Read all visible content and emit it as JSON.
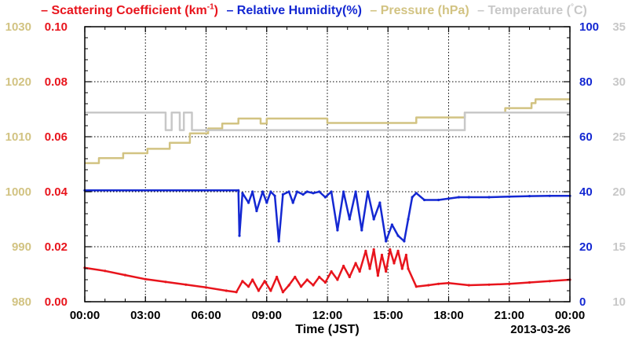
{
  "chart_data": {
    "type": "line",
    "legend": [
      {
        "name": "Scattering Coefficient (km",
        "sup": "-1",
        "tail": ")",
        "color": "#e8141c"
      },
      {
        "name": "Relative Humidity(%)",
        "color": "#1428d2"
      },
      {
        "name": "Pressure (hPa)",
        "color": "#d2c382"
      },
      {
        "name": "Temperature (",
        "sup": "°",
        "tail": "C)",
        "color": "#c8c8c8"
      }
    ],
    "xlabel": "Time (JST)",
    "date_label": "2013-03-26",
    "x_range": [
      0,
      24
    ],
    "x_ticks": [
      "00:00",
      "03:00",
      "06:00",
      "09:00",
      "12:00",
      "15:00",
      "18:00",
      "21:00",
      "00:00"
    ],
    "grid": true,
    "axes": {
      "pressure": {
        "ticks": [
          "980",
          "990",
          "1000",
          "1010",
          "1020",
          "1030"
        ],
        "range": [
          980,
          1030
        ],
        "color": "#d2c382"
      },
      "scattering": {
        "ticks": [
          "0.00",
          "0.02",
          "0.04",
          "0.06",
          "0.08",
          "0.10"
        ],
        "range": [
          0,
          0.1
        ],
        "color": "#e8141c"
      },
      "humidity": {
        "ticks": [
          "0",
          "20",
          "40",
          "60",
          "80",
          "100"
        ],
        "range": [
          0,
          100
        ],
        "color": "#1428d2"
      },
      "temperature": {
        "ticks": [
          "10",
          "15",
          "20",
          "25",
          "30",
          "35"
        ],
        "range": [
          10,
          35
        ],
        "color": "#c8c8c8"
      }
    },
    "series": [
      {
        "name": "Pressure (hPa)",
        "axis": "pressure",
        "color": "#d2c382",
        "x": [
          0,
          0.7,
          0.7,
          1.9,
          1.9,
          3.1,
          3.1,
          4.2,
          4.2,
          5.2,
          5.2,
          6.1,
          6.1,
          6.8,
          6.8,
          7.6,
          7.6,
          8.7,
          8.7,
          9.0,
          9.0,
          9.2,
          9.2,
          9.8,
          9.8,
          12.0,
          12.0,
          12.3,
          12.3,
          16.4,
          16.4,
          18.8,
          18.8,
          20.8,
          20.8,
          22.1,
          22.1,
          22.3,
          22.3,
          24
        ],
        "y": [
          1005.2,
          1005.2,
          1006.1,
          1006.1,
          1007.0,
          1007.0,
          1007.8,
          1007.8,
          1008.9,
          1008.9,
          1010.6,
          1010.6,
          1011.5,
          1011.5,
          1012.4,
          1012.4,
          1013.3,
          1013.3,
          1012.4,
          1012.4,
          1013.3,
          1013.3,
          1013.3,
          1013.3,
          1013.3,
          1013.3,
          1012.5,
          1012.5,
          1012.5,
          1012.5,
          1013.5,
          1013.5,
          1014.4,
          1014.4,
          1015.2,
          1015.2,
          1016.1,
          1016.1,
          1016.8,
          1016.8
        ]
      },
      {
        "name": "Temperature (°C)",
        "axis": "temperature",
        "color": "#c8c8c8",
        "x": [
          0,
          4.0,
          4.0,
          4.3,
          4.3,
          4.7,
          4.7,
          4.9,
          4.9,
          5.3,
          5.3,
          18.8,
          18.8,
          24
        ],
        "y": [
          27.2,
          27.2,
          25.6,
          25.6,
          27.2,
          27.2,
          25.6,
          25.6,
          27.2,
          27.2,
          25.6,
          25.6,
          27.2,
          27.2
        ]
      },
      {
        "name": "Relative Humidity(%)",
        "axis": "humidity",
        "color": "#1428d2",
        "x": [
          0,
          7.6,
          7.65,
          7.8,
          8.1,
          8.3,
          8.5,
          8.8,
          9.0,
          9.2,
          9.4,
          9.6,
          9.8,
          10.1,
          10.3,
          10.5,
          10.8,
          11.0,
          11.3,
          11.6,
          11.9,
          12.2,
          12.5,
          12.8,
          13.1,
          13.4,
          13.7,
          14.0,
          14.3,
          14.6,
          14.9,
          15.2,
          15.5,
          15.8,
          16.0,
          16.2,
          16.4,
          16.8,
          17.5,
          18.0,
          18.5,
          19.0,
          20.0,
          21.0,
          22.0,
          23.0,
          24
        ],
        "y": [
          40.5,
          40.5,
          24.0,
          39.5,
          36.0,
          40.0,
          33.0,
          40.0,
          36.0,
          40.0,
          38.5,
          22.0,
          39.0,
          40.0,
          36.0,
          40.0,
          39.0,
          40.0,
          39.5,
          40.0,
          38.0,
          40.0,
          26.0,
          40.0,
          30.0,
          40.0,
          26.0,
          40.0,
          30.0,
          36.0,
          22.0,
          28.0,
          24.0,
          22.0,
          30.0,
          38.0,
          39.5,
          37.0,
          37.0,
          37.5,
          38.0,
          38.0,
          38.0,
          38.2,
          38.4,
          38.5,
          38.5
        ]
      },
      {
        "name": "Scattering Coefficient (km-1)",
        "axis": "scattering",
        "color": "#e8141c",
        "x": [
          0,
          1.0,
          2.0,
          3.0,
          4.0,
          5.0,
          6.0,
          7.0,
          7.5,
          7.8,
          8.1,
          8.3,
          8.6,
          8.9,
          9.2,
          9.5,
          9.8,
          10.1,
          10.4,
          10.7,
          11.0,
          11.3,
          11.6,
          11.9,
          12.2,
          12.5,
          12.8,
          13.1,
          13.4,
          13.6,
          13.9,
          14.1,
          14.3,
          14.5,
          14.7,
          14.9,
          15.1,
          15.3,
          15.5,
          15.7,
          15.9,
          16.0,
          16.4,
          17.0,
          17.5,
          18.0,
          19.0,
          20.0,
          21.0,
          22.0,
          23.0,
          24
        ],
        "y": [
          0.0123,
          0.0112,
          0.0097,
          0.0082,
          0.0072,
          0.0062,
          0.0052,
          0.004,
          0.0035,
          0.0075,
          0.0055,
          0.008,
          0.004,
          0.0075,
          0.004,
          0.009,
          0.0035,
          0.006,
          0.009,
          0.0055,
          0.008,
          0.006,
          0.009,
          0.007,
          0.011,
          0.008,
          0.013,
          0.009,
          0.014,
          0.011,
          0.0185,
          0.012,
          0.019,
          0.0095,
          0.017,
          0.011,
          0.019,
          0.014,
          0.0185,
          0.012,
          0.017,
          0.012,
          0.0055,
          0.006,
          0.0065,
          0.0068,
          0.006,
          0.0062,
          0.0065,
          0.007,
          0.0075,
          0.008
        ]
      }
    ]
  }
}
